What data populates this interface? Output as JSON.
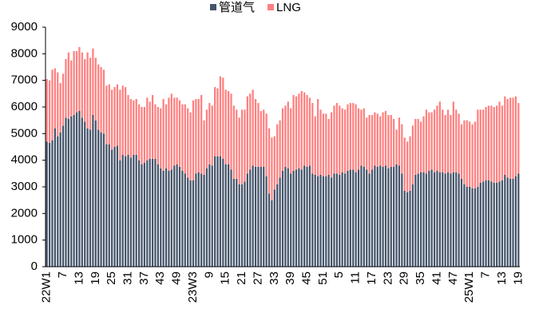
{
  "chart_data": {
    "type": "stacked-bar",
    "categories": [
      "22W1",
      null,
      null,
      null,
      null,
      null,
      "7",
      null,
      null,
      null,
      null,
      null,
      "13",
      null,
      null,
      null,
      null,
      null,
      "19",
      null,
      null,
      null,
      null,
      null,
      "25",
      null,
      null,
      null,
      null,
      null,
      "31",
      null,
      null,
      null,
      null,
      null,
      "37",
      null,
      null,
      null,
      null,
      null,
      "43",
      null,
      null,
      null,
      null,
      null,
      "49",
      null,
      null,
      null,
      null,
      null,
      "23W3",
      null,
      null,
      null,
      null,
      null,
      "9",
      null,
      null,
      null,
      null,
      null,
      "15",
      null,
      null,
      null,
      null,
      null,
      "21",
      null,
      null,
      null,
      null,
      null,
      "27",
      null,
      null,
      null,
      null,
      null,
      "33",
      null,
      null,
      null,
      null,
      null,
      "39",
      null,
      null,
      null,
      null,
      null,
      "45",
      null,
      null,
      null,
      null,
      null,
      "51",
      null,
      null,
      null,
      null,
      null,
      "5",
      null,
      null,
      null,
      null,
      null,
      "11",
      null,
      null,
      null,
      null,
      null,
      "17",
      null,
      null,
      null,
      null,
      null,
      "23",
      null,
      null,
      null,
      null,
      null,
      "29",
      null,
      null,
      null,
      null,
      null,
      "35",
      null,
      null,
      null,
      null,
      null,
      "41",
      null,
      null,
      null,
      null,
      null,
      "47",
      null,
      null,
      null,
      null,
      null,
      "25W1",
      null,
      null,
      null,
      null,
      null,
      "7",
      null,
      null,
      null,
      null,
      null,
      "13",
      null,
      null,
      null,
      null,
      null,
      "19"
    ],
    "series": [
      {
        "name": "管道气",
        "color": "#44546a",
        "values": [
          4700,
          4650,
          4750,
          5200,
          4900,
          5050,
          5300,
          5600,
          5550,
          5650,
          5700,
          5800,
          5850,
          5600,
          5450,
          5200,
          5150,
          5700,
          5500,
          5150,
          5050,
          5000,
          4600,
          4600,
          4400,
          4500,
          4550,
          4000,
          4200,
          4150,
          4200,
          4100,
          4200,
          4200,
          4000,
          3850,
          3900,
          4000,
          4050,
          4050,
          4050,
          3850,
          3700,
          3600,
          3700,
          3600,
          3650,
          3800,
          3850,
          3750,
          3600,
          3500,
          3350,
          3250,
          3250,
          3500,
          3550,
          3500,
          3450,
          3700,
          3850,
          3800,
          4150,
          4150,
          4150,
          4050,
          3850,
          3850,
          3650,
          3300,
          3300,
          3100,
          3100,
          3200,
          3500,
          3650,
          3800,
          3750,
          3750,
          3750,
          3750,
          3400,
          2750,
          2500,
          2900,
          3100,
          3350,
          3600,
          3750,
          3700,
          3500,
          3600,
          3650,
          3700,
          3650,
          3800,
          3750,
          3800,
          3500,
          3450,
          3400,
          3450,
          3400,
          3400,
          3450,
          3350,
          3500,
          3500,
          3450,
          3550,
          3500,
          3600,
          3650,
          3650,
          3550,
          3650,
          3800,
          3750,
          3650,
          3500,
          3650,
          3800,
          3750,
          3800,
          3750,
          3800,
          3700,
          3750,
          3750,
          3850,
          3800,
          3500,
          2850,
          2800,
          2850,
          3100,
          3450,
          3500,
          3550,
          3550,
          3500,
          3600,
          3650,
          3550,
          3600,
          3550,
          3550,
          3500,
          3550,
          3500,
          3550,
          3550,
          3500,
          3300,
          3100,
          3000,
          3000,
          2950,
          2950,
          3000,
          3150,
          3200,
          3250,
          3250,
          3200,
          3150,
          3150,
          3200,
          3250,
          3450,
          3350,
          3300,
          3300,
          3400,
          3500
        ]
      },
      {
        "name": "LNG",
        "color": "#ff8080",
        "values": [
          2350,
          2350,
          2650,
          2250,
          2400,
          1850,
          1950,
          2200,
          2500,
          2100,
          2400,
          2300,
          2400,
          2450,
          2350,
          2850,
          2700,
          2500,
          2350,
          2450,
          2450,
          2400,
          2200,
          2250,
          2250,
          2250,
          2300,
          2650,
          2600,
          2600,
          2250,
          2200,
          2050,
          2100,
          2100,
          2150,
          2100,
          2350,
          2150,
          2400,
          2050,
          2150,
          2250,
          2700,
          2400,
          2750,
          2850,
          2550,
          2500,
          2500,
          2500,
          2600,
          2600,
          2550,
          3000,
          2800,
          2750,
          2950,
          2050,
          2200,
          2300,
          2250,
          2600,
          2550,
          3000,
          3050,
          2800,
          2750,
          2850,
          2750,
          2600,
          2500,
          2800,
          2700,
          2900,
          2850,
          2850,
          2550,
          2400,
          2100,
          2150,
          2350,
          2450,
          2350,
          2000,
          2250,
          2150,
          2350,
          2300,
          2500,
          2450,
          2850,
          2750,
          2800,
          2950,
          2750,
          2700,
          2550,
          2650,
          2200,
          2900,
          2450,
          2350,
          2350,
          2100,
          2450,
          2550,
          2650,
          2600,
          2400,
          2400,
          2500,
          2500,
          2500,
          2550,
          2300,
          2100,
          2200,
          1950,
          2200,
          2050,
          2000,
          2000,
          1850,
          2050,
          2050,
          2000,
          1950,
          1800,
          1300,
          1800,
          1850,
          2000,
          1900,
          2050,
          2200,
          2100,
          2050,
          1900,
          2100,
          2400,
          2200,
          2150,
          2350,
          2450,
          2650,
          2350,
          2200,
          2350,
          2200,
          2650,
          2350,
          2250,
          2050,
          2400,
          2500,
          2450,
          2400,
          2500,
          2900,
          2750,
          2700,
          2750,
          2800,
          2850,
          2850,
          2900,
          3000,
          2800,
          2950,
          2950,
          3050,
          3050,
          3000,
          2650
        ]
      }
    ],
    "ylim": [
      0,
      9000
    ],
    "yticks": [
      0,
      1000,
      2000,
      3000,
      4000,
      5000,
      6000,
      7000,
      8000,
      9000
    ],
    "grid": false,
    "legend": "top"
  }
}
